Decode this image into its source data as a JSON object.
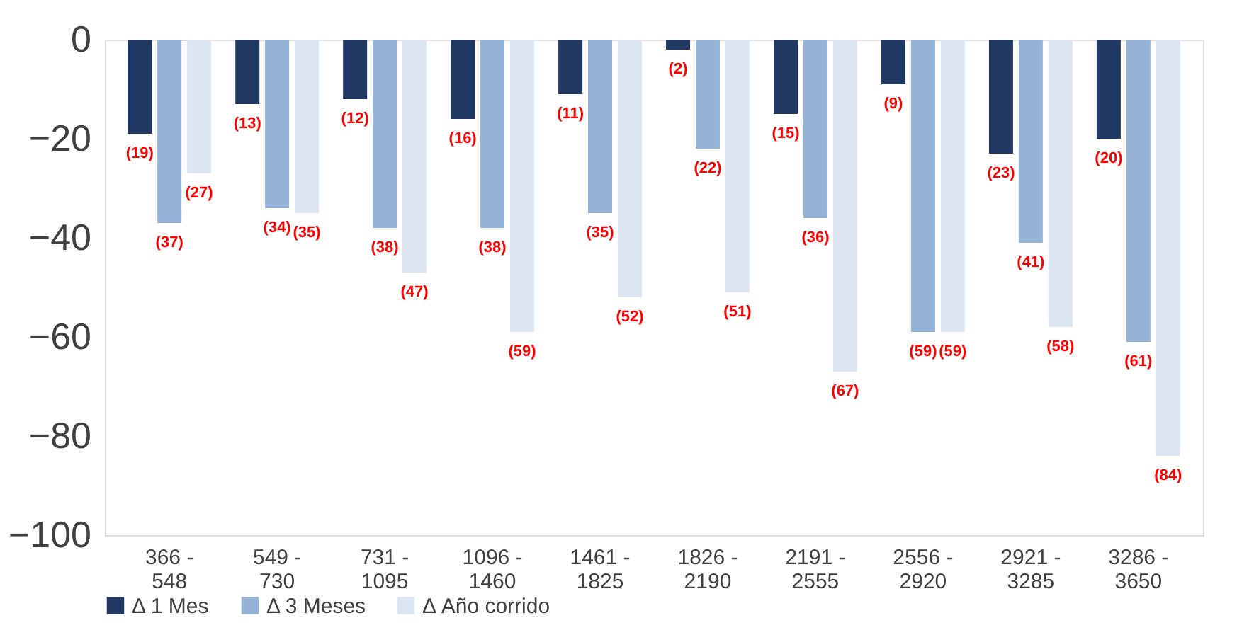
{
  "chart_data": {
    "type": "bar",
    "categories": [
      "366 - 548",
      "549 - 730",
      "731 - 1095",
      "1096 - 1460",
      "1461 - 1825",
      "1826 - 2190",
      "2191 - 2555",
      "2556 - 2920",
      "2921 - 3285",
      "3286 - 3650"
    ],
    "series": [
      {
        "name": "Δ 1 Mes",
        "color": "#203864",
        "values": [
          -19,
          -13,
          -12,
          -16,
          -11,
          -2,
          -15,
          -9,
          -23,
          -20
        ],
        "value_labels": [
          "(19)",
          "(13)",
          "(12)",
          "(16)",
          "(11)",
          "(2)",
          "(15)",
          "(9)",
          "(23)",
          "(20)"
        ]
      },
      {
        "name": "Δ 3 Meses",
        "color": "#95b3d7",
        "values": [
          -37,
          -34,
          -38,
          -38,
          -35,
          -22,
          -36,
          -59,
          -41,
          -61
        ],
        "value_labels": [
          "(37)",
          "(34)",
          "(38)",
          "(38)",
          "(35)",
          "(22)",
          "(36)",
          "(59)",
          "(41)",
          "(61)"
        ]
      },
      {
        "name": "Δ Año corrido",
        "color": "#dce6f2",
        "values": [
          -27,
          -35,
          -47,
          -59,
          -52,
          -51,
          -67,
          -59,
          -58,
          -84
        ],
        "value_labels": [
          "(27)",
          "(35)",
          "(47)",
          "(59)",
          "(52)",
          "(51)",
          "(67)",
          "(59)",
          "(58)",
          "(84)"
        ]
      }
    ],
    "ylim": [
      -100,
      0
    ],
    "yticks": [
      -100,
      -80,
      -60,
      -40,
      -20,
      0
    ],
    "grid": false,
    "legend": "bottom"
  }
}
